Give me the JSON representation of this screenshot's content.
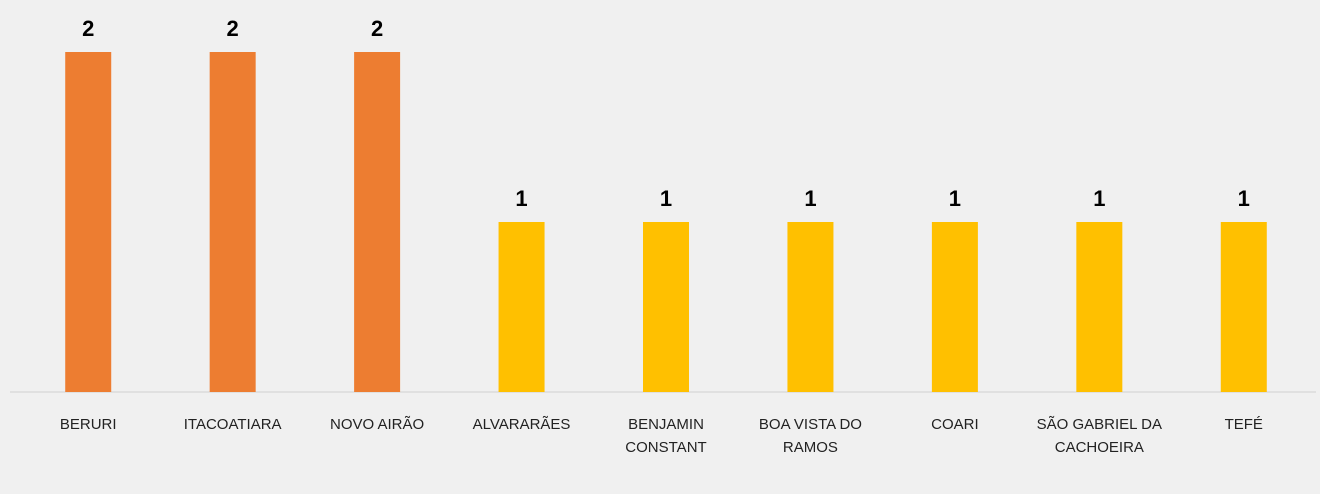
{
  "chart_data": {
    "type": "bar",
    "categories": [
      "BERURI",
      "ITACOATIARA",
      "NOVO AIRÃO",
      "ALVARARÃES",
      "BENJAMIN CONSTANT",
      "BOA VISTA DO RAMOS",
      "COARI",
      "SÃO GABRIEL DA CACHOEIRA",
      "TEFÉ"
    ],
    "values": [
      2,
      2,
      2,
      1,
      1,
      1,
      1,
      1,
      1
    ],
    "colors": [
      "#ed7d31",
      "#ed7d31",
      "#ed7d31",
      "#ffc000",
      "#ffc000",
      "#ffc000",
      "#ffc000",
      "#ffc000",
      "#ffc000"
    ]
  }
}
